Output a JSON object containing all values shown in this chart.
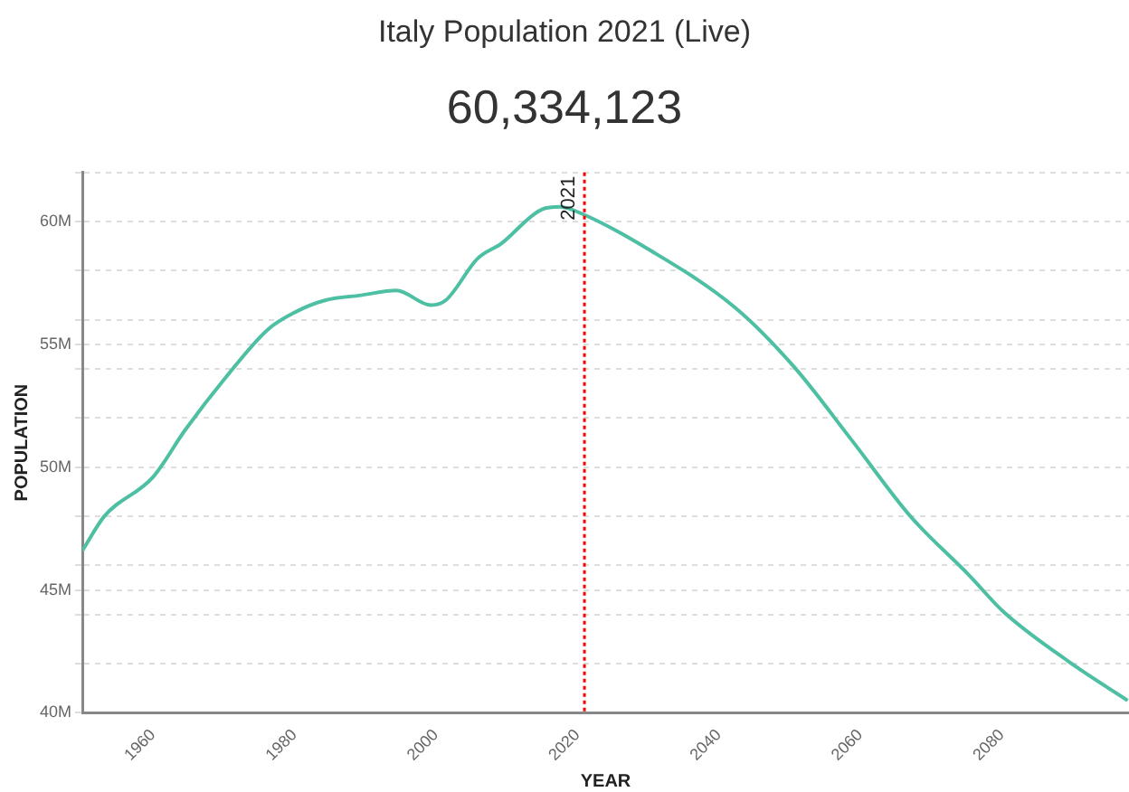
{
  "chart_data": {
    "type": "line",
    "title": "Italy Population 2021 (Live)",
    "subtitle": "60,334,123",
    "xlabel": "YEAR",
    "ylabel": "POPULATION",
    "x": [
      1950,
      1953.1,
      1960,
      1964.5,
      1970.4,
      1976.2,
      1980,
      1984.4,
      1989.4,
      1994.4,
      1999.3,
      2001.4,
      2005.9,
      2009.2,
      2015,
      2017.5,
      2020.8,
      2029.9,
      2042.3,
      2050.6,
      2058.8,
      2067.1,
      2075.4,
      2080.3,
      2089.4,
      2097.8
    ],
    "series": [
      {
        "color": "#4dbfa3",
        "values": [
          46.6,
          48.0,
          49.6,
          51.5,
          53.7,
          55.6,
          56.3,
          56.8,
          57.0,
          57.2,
          56.6,
          56.8,
          58.5,
          59.1,
          60.5,
          60.6,
          60.3,
          58.9,
          56.5,
          54.1,
          51.1,
          48.0,
          45.6,
          44.1,
          42.1,
          40.5
        ]
      }
    ],
    "xlim": [
      1950,
      2098
    ],
    "xticks": [
      1960,
      1980,
      2000,
      2020,
      2040,
      2060,
      2080
    ],
    "ylim": [
      40,
      62
    ],
    "yticks": [
      {
        "value": 40,
        "label": "40M"
      },
      {
        "value": 42,
        "label": null
      },
      {
        "value": 44,
        "label": null
      },
      {
        "value": 45,
        "label": "45M"
      },
      {
        "value": 46,
        "label": null
      },
      {
        "value": 48,
        "label": null
      },
      {
        "value": 50,
        "label": "50M"
      },
      {
        "value": 52,
        "label": null
      },
      {
        "value": 54,
        "label": null
      },
      {
        "value": 55,
        "label": "55M"
      },
      {
        "value": 56,
        "label": null
      },
      {
        "value": 58,
        "label": null
      },
      {
        "value": 60,
        "label": "60M"
      },
      {
        "value": 62,
        "label": null
      }
    ],
    "ref_lines": [
      {
        "axis": "x",
        "value": 2021,
        "label": "2021",
        "color": "#ff0000",
        "line_style": "dotted"
      }
    ],
    "grid": "y",
    "legend": false,
    "marker": "none",
    "line_style": "solid"
  }
}
